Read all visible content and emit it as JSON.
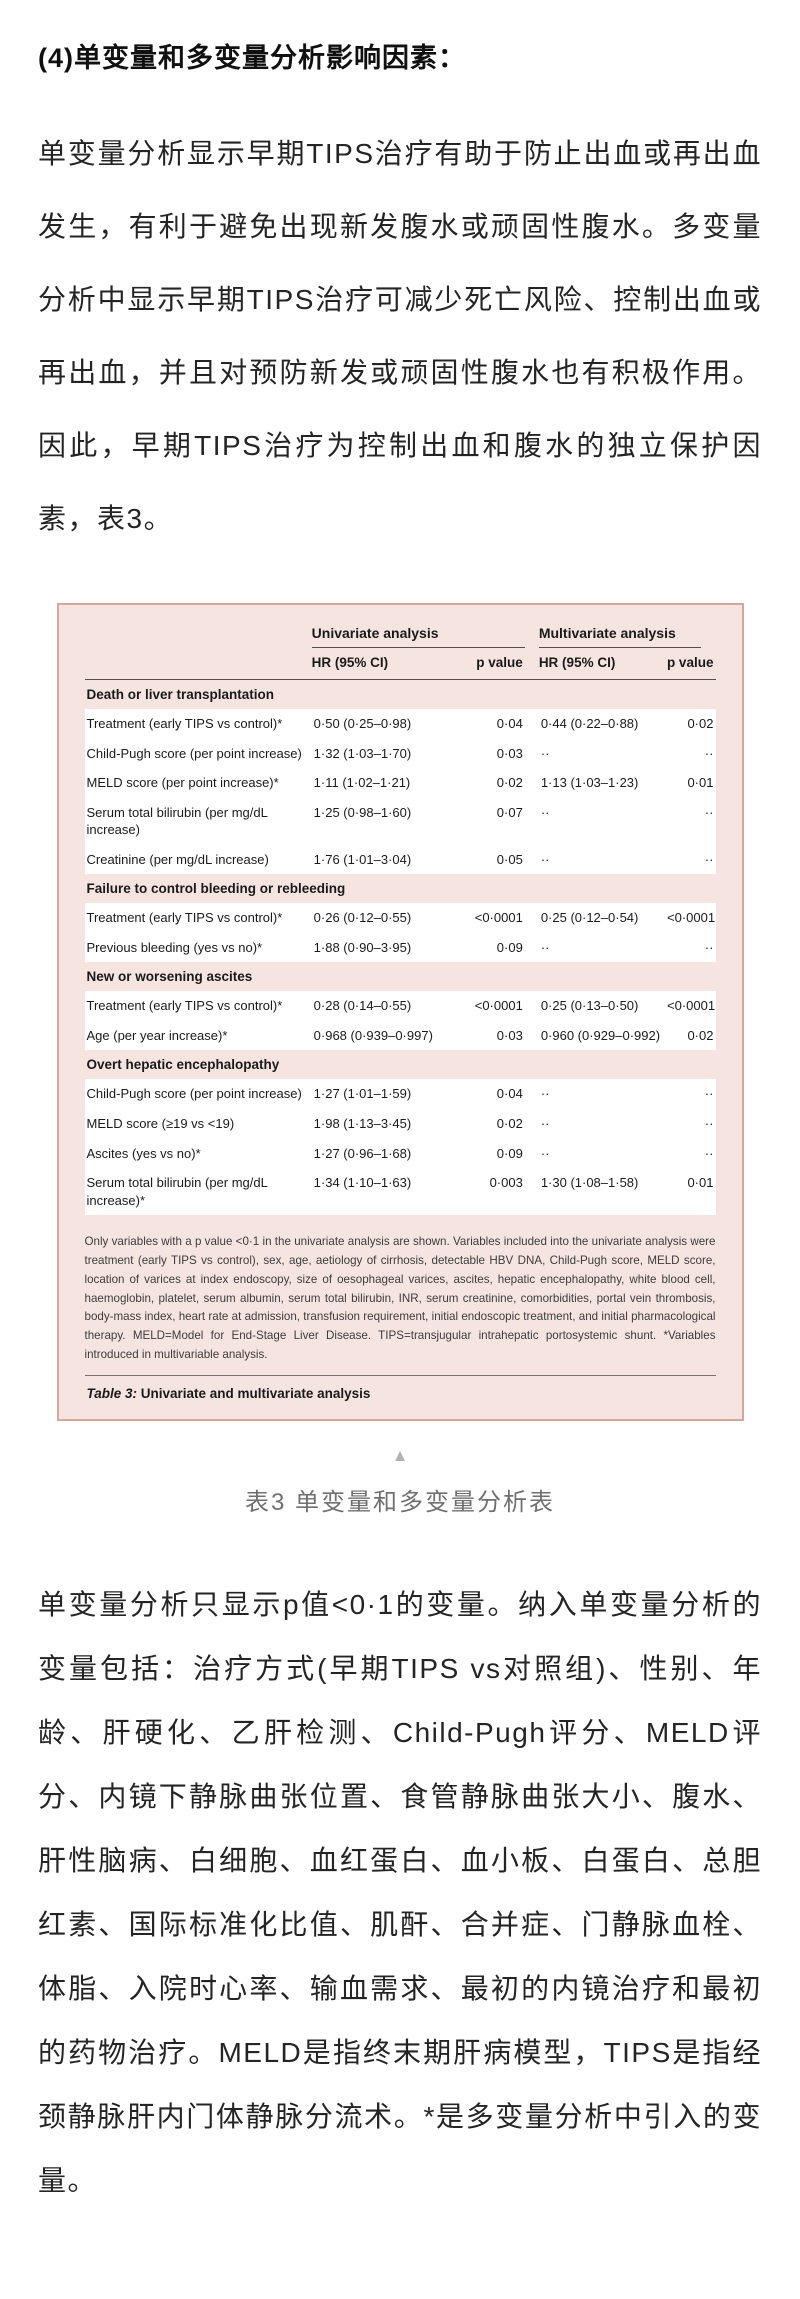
{
  "page": {
    "heading": "(4)单变量和多变量分析影响因素：",
    "para1": "单变量分析显示早期TIPS治疗有助于防止出血或再出血发生，有利于避免出现新发腹水或顽固性腹水。多变量分析中显示早期TIPS治疗可减少死亡风险、控制出血或再出血，并且对预防新发或顽固性腹水也有积极作用。因此，早期TIPS治疗为控制出血和腹水的独立保护因素，表3。",
    "table_caption": "表3 单变量和多变量分析表",
    "para2": "单变量分析只显示p值<0·1的变量。纳入单变量分析的变量包括：治疗方式(早期TIPS vs对照组)、性别、年龄、肝硬化、乙肝检测、Child-Pugh评分、MELD评分、内镜下静脉曲张位置、食管静脉曲张大小、腹水、肝性脑病、白细胞、血红蛋白、血小板、白蛋白、总胆红素、国际标准化比值、肌酐、合并症、门静脉血栓、体脂、入院时心率、输血需求、最初的内镜治疗和最初的药物治疗。MELD是指终末期肝病模型，TIPS是指经颈静脉肝内门体静脉分流术。*是多变量分析中引入的变量。"
  },
  "table": {
    "group_headers": [
      "Univariate analysis",
      "Multivariate analysis"
    ],
    "col_headers": [
      "HR (95% CI)",
      "p value",
      "HR (95% CI)",
      "p value"
    ],
    "sections": [
      {
        "title": "Death or liver transplantation",
        "rows": [
          [
            "Treatment (early TIPS vs control)*",
            "0·50 (0·25–0·98)",
            "0·04",
            "0·44 (0·22–0·88)",
            "0·02"
          ],
          [
            "Child-Pugh score (per point increase)",
            "1·32 (1·03–1·70)",
            "0·03",
            "··",
            "··"
          ],
          [
            "MELD score (per point increase)*",
            "1·11 (1·02–1·21)",
            "0·02",
            "1·13 (1·03–1·23)",
            "0·01"
          ],
          [
            "Serum total bilirubin (per mg/dL increase)",
            "1·25 (0·98–1·60)",
            "0·07",
            "··",
            "··"
          ],
          [
            "Creatinine (per mg/dL increase)",
            "1·76 (1·01–3·04)",
            "0·05",
            "··",
            "··"
          ]
        ]
      },
      {
        "title": "Failure to control bleeding or rebleeding",
        "rows": [
          [
            "Treatment (early TIPS vs control)*",
            "0·26 (0·12–0·55)",
            "<0·0001",
            "0·25 (0·12–0·54)",
            "<0·0001"
          ],
          [
            "Previous bleeding (yes vs no)*",
            "1·88 (0·90–3·95)",
            "0·09",
            "··",
            "··"
          ]
        ]
      },
      {
        "title": "New or worsening ascites",
        "rows": [
          [
            "Treatment (early TIPS vs control)*",
            "0·28 (0·14–0·55)",
            "<0·0001",
            "0·25 (0·13–0·50)",
            "<0·0001"
          ],
          [
            "Age (per year increase)*",
            "0·968 (0·939–0·997)",
            "0·03",
            "0·960 (0·929–0·992)",
            "0·02"
          ]
        ]
      },
      {
        "title": "Overt hepatic encephalopathy",
        "rows": [
          [
            "Child-Pugh score (per point increase)",
            "1·27 (1·01–1·59)",
            "0·04",
            "··",
            "··"
          ],
          [
            "MELD score (≥19 vs <19)",
            "1·98 (1·13–3·45)",
            "0·02",
            "··",
            "··"
          ],
          [
            "Ascites (yes vs no)*",
            "1·27 (0·96–1·68)",
            "0·09",
            "··",
            "··"
          ],
          [
            "Serum total bilirubin (per mg/dL increase)*",
            "1·34 (1·10–1·63)",
            "0·003",
            "1·30 (1·08–1·58)",
            "0·01"
          ]
        ]
      }
    ],
    "footnote": "Only variables with a p value <0·1 in the univariate analysis are shown. Variables included into the univariate analysis were treatment (early TIPS vs control), sex, age, aetiology of cirrhosis, detectable HBV DNA, Child-Pugh score, MELD score, location of varices at index endoscopy, size of oesophageal varices, ascites, hepatic encephalopathy, white blood cell, haemoglobin, platelet, serum albumin, serum total bilirubin, INR, serum creatinine, comorbidities, portal vein thrombosis, body-mass index, heart rate at admission, transfusion requirement, initial endoscopic treatment, and initial pharmacological therapy. MELD=Model for End-Stage Liver Disease. TIPS=transjugular intrahepatic portosystemic shunt. *Variables introduced in multivariable analysis.",
    "label_prefix": "Table 3:",
    "label_text": " Univariate and multivariate analysis"
  },
  "icons": {
    "collapse_triangle": "▲"
  },
  "colors": {
    "table_background": "#f6e4e0",
    "table_border": "#d6a59d",
    "table_rule": "#55504c",
    "caption_gray": "#6f6f6f",
    "body_text": "#242424"
  }
}
